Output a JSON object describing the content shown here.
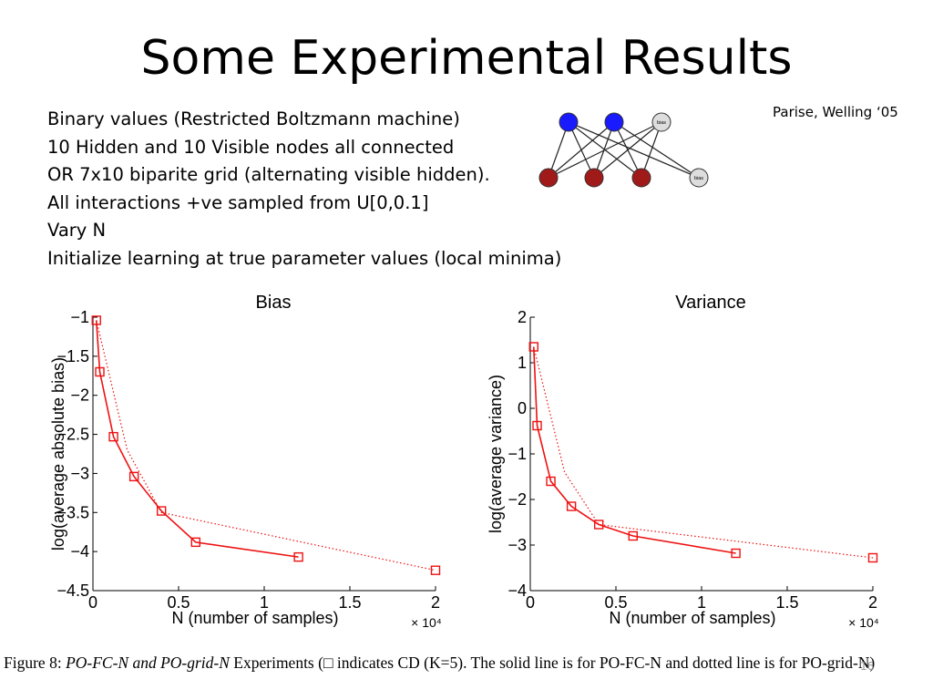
{
  "slide": {
    "title": "Some Experimental Results",
    "citation": "Parise, Welling ‘05",
    "bullets": [
      "Binary values (Restricted Boltzmann machine)",
      "10 Hidden and 10 Visible nodes all connected",
      "OR 7x10 biparite grid (alternating visible hidden).",
      "All interactions +ve sampled from U[0,0.1]",
      "Vary N",
      "Initialize learning at true parameter values (local minima)"
    ],
    "network": {
      "bias_label": "bias",
      "hidden_color": "#1a1aff",
      "visible_color": "#a11a1a",
      "bias_color": "#dddddd"
    },
    "caption": {
      "figure": "Figure 8:",
      "experiments": "PO-FC-N and PO-grid-N",
      "rest": "Experiments (□ indicates CD (K=5). The solid line is for PO-FC-N and dotted line is for PO-grid-N)"
    },
    "page_number": "16"
  },
  "chart_data": [
    {
      "type": "line",
      "title": "Bias",
      "xlabel": "N (number of samples)",
      "ylabel": "log(average absolute bias)",
      "xlim": [
        0,
        20000
      ],
      "ylim": [
        -4.5,
        -1
      ],
      "x_multiplier": "× 10⁴",
      "xticks": [
        0,
        5000,
        10000,
        15000,
        20000
      ],
      "xtick_labels": [
        "0",
        "0.5",
        "1",
        "1.5",
        "2"
      ],
      "yticks": [
        -1,
        -1.5,
        -2,
        -2.5,
        -3,
        -3.5,
        -4,
        -4.5
      ],
      "ytick_labels": [
        "−1",
        "−1.5",
        "−2",
        "−2.5",
        "−3",
        "−3.5",
        "−4",
        "−4.5"
      ],
      "series": [
        {
          "style": "solid",
          "color": "#ee1111",
          "x": [
            200,
            400,
            1200,
            2400,
            4000,
            6000,
            12000
          ],
          "y": [
            -1.04,
            -1.7,
            -2.53,
            -3.04,
            -3.48,
            -3.88,
            -4.07
          ]
        },
        {
          "style": "dotted",
          "color": "#ee1111",
          "x": [
            200,
            2000,
            4000,
            20000
          ],
          "y": [
            -1.04,
            -2.7,
            -3.5,
            -4.24
          ]
        }
      ],
      "markers": {
        "x": [
          200,
          400,
          1200,
          2400,
          4000,
          6000,
          12000,
          20000
        ],
        "y": [
          -1.04,
          -1.7,
          -2.53,
          -3.04,
          -3.48,
          -3.88,
          -4.07,
          -4.24
        ]
      }
    },
    {
      "type": "line",
      "title": "Variance",
      "xlabel": "N (number of samples)",
      "ylabel": "log(average variance)",
      "xlim": [
        0,
        20000
      ],
      "ylim": [
        -4,
        2
      ],
      "x_multiplier": "× 10⁴",
      "xticks": [
        0,
        5000,
        10000,
        15000,
        20000
      ],
      "xtick_labels": [
        "0",
        "0.5",
        "1",
        "1.5",
        "2"
      ],
      "yticks": [
        2,
        1,
        0,
        -1,
        -2,
        -3,
        -4
      ],
      "ytick_labels": [
        "2",
        "1",
        "0",
        "−1",
        "−2",
        "−3",
        "−4"
      ],
      "series": [
        {
          "style": "solid",
          "color": "#ee1111",
          "x": [
            200,
            400,
            1200,
            2400,
            4000,
            6000,
            12000
          ],
          "y": [
            1.35,
            -0.38,
            -1.6,
            -2.15,
            -2.55,
            -2.8,
            -3.18
          ]
        },
        {
          "style": "dotted",
          "color": "#ee1111",
          "x": [
            200,
            2000,
            4000,
            20000
          ],
          "y": [
            1.35,
            -1.4,
            -2.55,
            -3.28
          ]
        }
      ],
      "markers": {
        "x": [
          200,
          400,
          1200,
          2400,
          4000,
          6000,
          12000,
          20000
        ],
        "y": [
          1.35,
          -0.38,
          -1.6,
          -2.15,
          -2.55,
          -2.8,
          -3.18,
          -3.28
        ]
      }
    }
  ]
}
